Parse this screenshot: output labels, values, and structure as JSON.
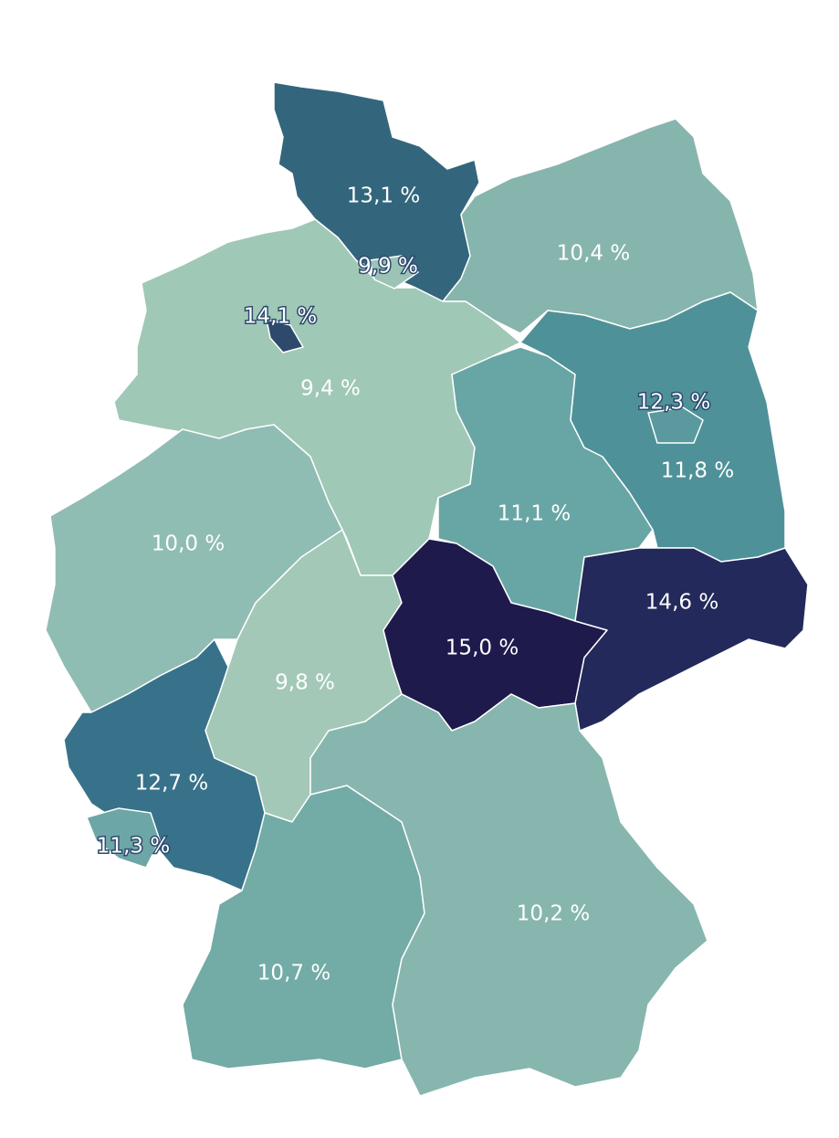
{
  "regions": [
    {
      "value": 13.1,
      "label": "13,1 %",
      "color": "#33667c"
    },
    {
      "value": 10.4,
      "label": "10,4 %",
      "color": "#86b5ad"
    },
    {
      "value": 9.4,
      "label": "9,4 %",
      "color": "#a0c8b6"
    },
    {
      "value": 9.9,
      "label": "9,9 %",
      "color": "#9cc4b6"
    },
    {
      "value": 14.1,
      "label": "14,1 %",
      "color": "#2d4a6d"
    },
    {
      "value": 11.1,
      "label": "11,1 %",
      "color": "#68a6a5"
    },
    {
      "value": 11.8,
      "label": "11,8 %",
      "color": "#4f9199"
    },
    {
      "value": 12.3,
      "label": "12,3 %",
      "color": "#5a9a9f"
    },
    {
      "value": 10.0,
      "label": "10,0 %",
      "color": "#90bdb3"
    },
    {
      "value": 9.8,
      "label": "9,8 %",
      "color": "#a3c8b7"
    },
    {
      "value": 15.0,
      "label": "15,0 %",
      "color": "#1e1a4c"
    },
    {
      "value": 14.6,
      "label": "14,6 %",
      "color": "#23295a"
    },
    {
      "value": 12.7,
      "label": "12,7 %",
      "color": "#38728a"
    },
    {
      "value": 11.3,
      "label": "11,3 %",
      "color": "#6da6a7"
    },
    {
      "value": 10.7,
      "label": "10,7 %",
      "color": "#73aba6"
    },
    {
      "value": 10.2,
      "label": "10,2 %",
      "color": "#87b6ae"
    }
  ]
}
